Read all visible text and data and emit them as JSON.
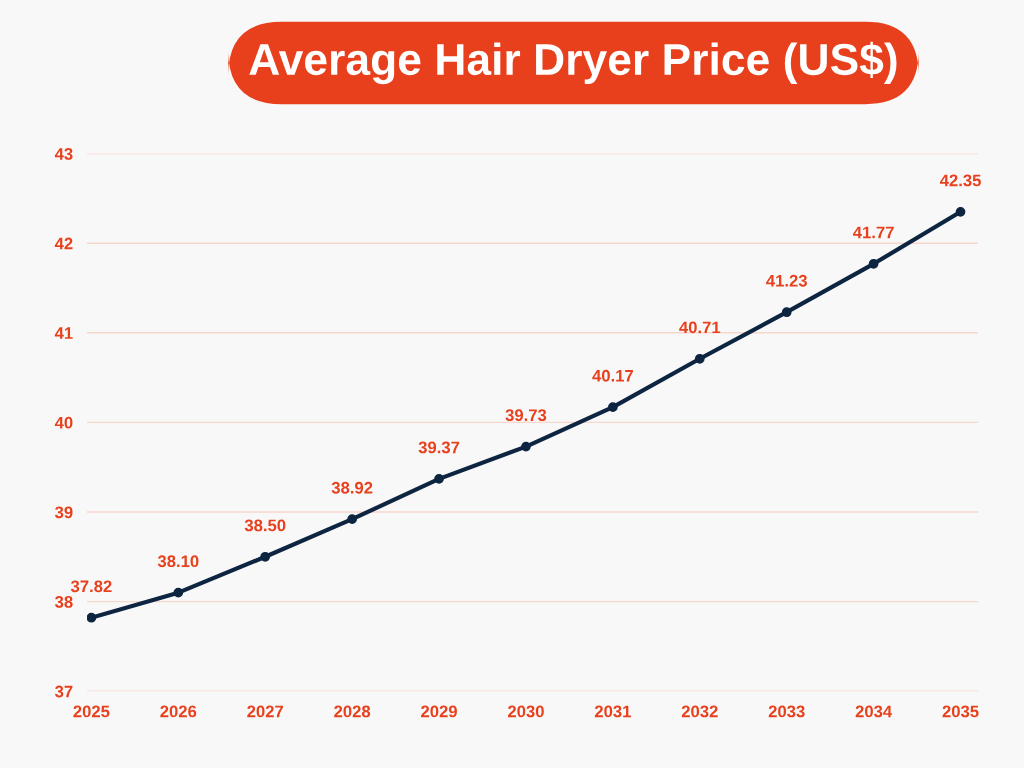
{
  "chart_data": {
    "type": "line",
    "title": "Average Hair Dryer Price (US$)",
    "categories": [
      "2025",
      "2026",
      "2027",
      "2028",
      "2029",
      "2030",
      "2031",
      "2032",
      "2033",
      "2034",
      "2035"
    ],
    "series": [
      {
        "color": "#0d2540",
        "values": [
          37.82,
          38.1,
          38.5,
          38.92,
          39.37,
          39.73,
          40.17,
          40.71,
          41.23,
          41.77,
          42.35
        ],
        "value_labels": [
          "37.82",
          "38.10",
          "38.50",
          "38.92",
          "39.37",
          "39.73",
          "40.17",
          "40.71",
          "41.23",
          "41.77",
          "42.35"
        ]
      }
    ],
    "ylim": [
      37,
      43
    ],
    "yticks": [
      37,
      38,
      39,
      40,
      41,
      42,
      43
    ],
    "grid": "y",
    "marker": "circle",
    "line_style": "solid"
  }
}
